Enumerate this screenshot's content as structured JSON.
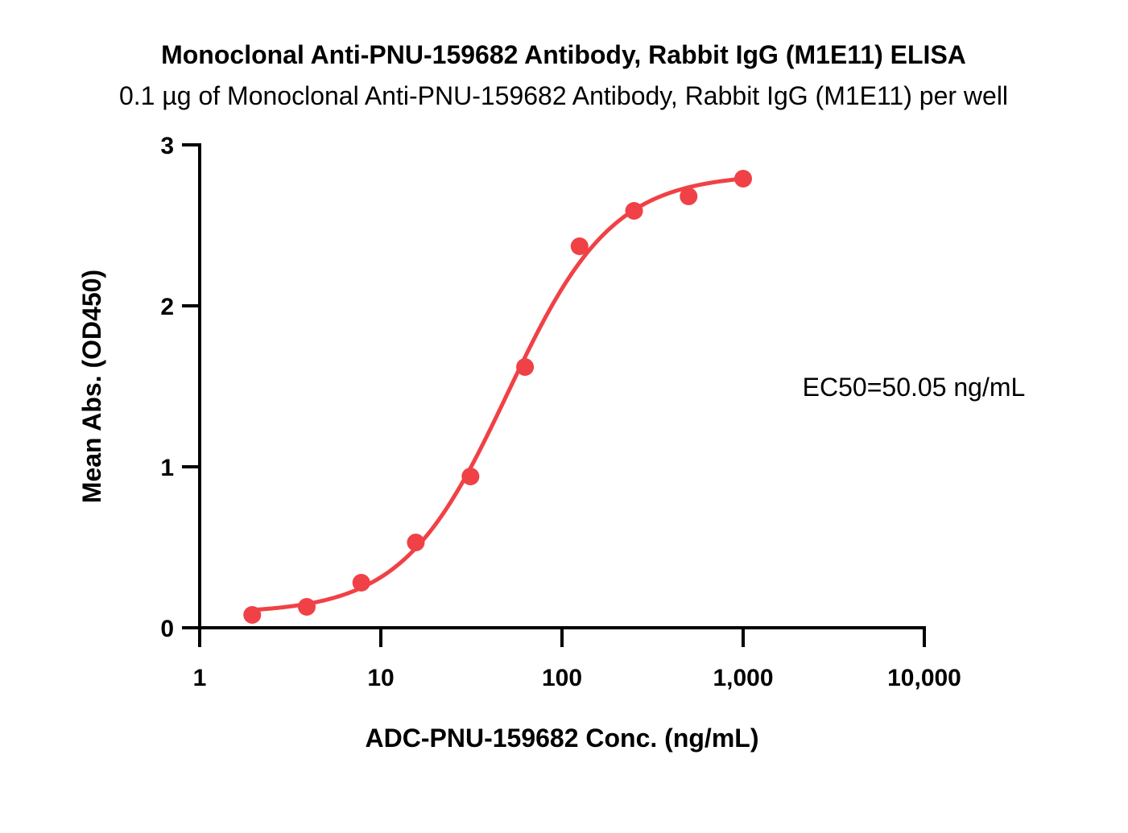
{
  "chart_data": {
    "type": "scatter",
    "title": "Monoclonal Anti-PNU-159682 Antibody, Rabbit IgG (M1E11) ELISA",
    "subtitle": "0.1 µg of Monoclonal Anti-PNU-159682 Antibody, Rabbit IgG (M1E11) per well",
    "xlabel": "ADC-PNU-159682 Conc. (ng/mL)",
    "ylabel": "Mean Abs. (OD450)",
    "x_scale": "log10",
    "xlim": [
      1,
      10000
    ],
    "ylim": [
      0,
      3
    ],
    "x_ticks": [
      1,
      10,
      100,
      1000,
      10000
    ],
    "x_tick_labels": [
      "1",
      "10",
      "100",
      "1,000",
      "10,000"
    ],
    "y_ticks": [
      0,
      1,
      2,
      3
    ],
    "y_tick_labels": [
      "0",
      "1",
      "2",
      "3"
    ],
    "grid": false,
    "series": [
      {
        "x": [
          1.95,
          3.9,
          7.8,
          15.6,
          31.25,
          62.5,
          125,
          250,
          500,
          1000
        ],
        "y": [
          0.08,
          0.13,
          0.28,
          0.53,
          0.94,
          1.62,
          2.37,
          2.59,
          2.68,
          2.79
        ],
        "color": "#F04146"
      }
    ],
    "annotations": [
      {
        "text": "EC50=50.05 ng/mL"
      }
    ]
  }
}
